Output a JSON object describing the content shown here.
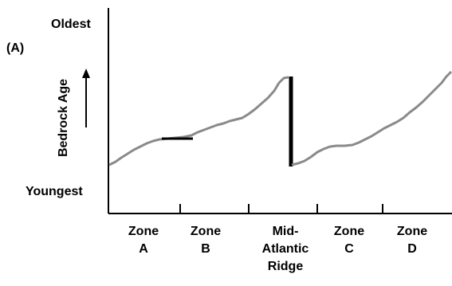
{
  "panel_label": "(A)",
  "y_axis": {
    "title": "Bedrock Age",
    "top_label": "Oldest",
    "bottom_label": "Youngest"
  },
  "zones": [
    {
      "lines": [
        "Zone",
        "A"
      ]
    },
    {
      "lines": [
        "Zone",
        "B"
      ]
    },
    {
      "lines": [
        "Mid-",
        "Atlantic",
        "Ridge"
      ]
    },
    {
      "lines": [
        "Zone",
        "C"
      ]
    },
    {
      "lines": [
        "Zone",
        "D"
      ]
    }
  ],
  "colors": {
    "curve": "#8a8a8a",
    "highlight": "#000000",
    "axis": "#000000"
  }
}
